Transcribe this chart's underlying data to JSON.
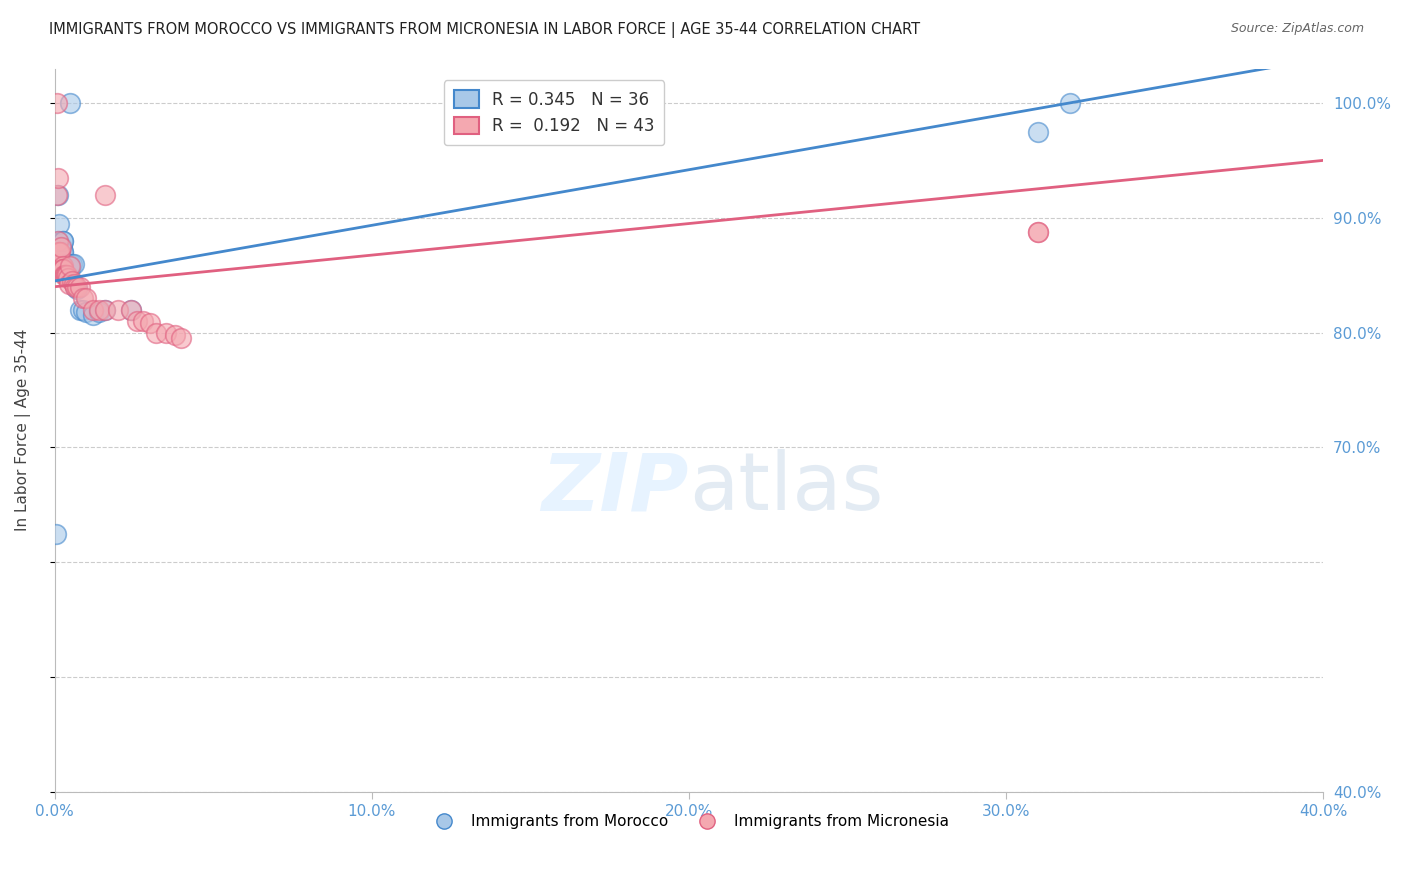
{
  "title": "IMMIGRANTS FROM MOROCCO VS IMMIGRANTS FROM MICRONESIA IN LABOR FORCE | AGE 35-44 CORRELATION CHART",
  "source": "Source: ZipAtlas.com",
  "ylabel": "In Labor Force | Age 35-44",
  "morocco_label": "Immigrants from Morocco",
  "micronesia_label": "Immigrants from Micronesia",
  "morocco_R": 0.345,
  "morocco_N": 36,
  "micronesia_R": 0.192,
  "micronesia_N": 43,
  "morocco_color": "#a8c8e8",
  "micronesia_color": "#f4a8b0",
  "morocco_line_color": "#4488cc",
  "micronesia_line_color": "#e06080",
  "xlim": [
    0.0,
    0.4
  ],
  "ylim": [
    0.4,
    1.03
  ],
  "morocco_x": [
    0.0005,
    0.001,
    0.001,
    0.0012,
    0.0015,
    0.0018,
    0.002,
    0.0022,
    0.0025,
    0.0025,
    0.0028,
    0.0028,
    0.003,
    0.003,
    0.0032,
    0.0035,
    0.0038,
    0.004,
    0.0042,
    0.0045,
    0.0048,
    0.005,
    0.0055,
    0.006,
    0.0065,
    0.007,
    0.008,
    0.009,
    0.01,
    0.012,
    0.014,
    0.016,
    0.024,
    0.005,
    0.31,
    0.32
  ],
  "morocco_y": [
    0.625,
    0.87,
    0.88,
    0.92,
    0.895,
    0.87,
    0.875,
    0.875,
    0.88,
    0.87,
    0.87,
    0.88,
    0.86,
    0.855,
    0.855,
    0.855,
    0.86,
    0.86,
    0.86,
    0.858,
    0.855,
    0.86,
    0.86,
    0.86,
    0.84,
    0.838,
    0.82,
    0.82,
    0.818,
    0.815,
    0.818,
    0.82,
    0.82,
    1.0,
    0.975,
    1.0
  ],
  "micronesia_x": [
    0.0002,
    0.0005,
    0.0008,
    0.001,
    0.0012,
    0.0015,
    0.0015,
    0.0018,
    0.002,
    0.0022,
    0.0025,
    0.0025,
    0.0028,
    0.003,
    0.0032,
    0.0035,
    0.004,
    0.0042,
    0.0045,
    0.005,
    0.0055,
    0.006,
    0.0065,
    0.007,
    0.008,
    0.009,
    0.01,
    0.012,
    0.014,
    0.016,
    0.02,
    0.024,
    0.026,
    0.028,
    0.03,
    0.032,
    0.035,
    0.038,
    0.04,
    0.016,
    0.31,
    0.31,
    0.0008
  ],
  "micronesia_y": [
    0.86,
    0.86,
    0.92,
    0.935,
    0.88,
    0.87,
    0.87,
    0.87,
    0.875,
    0.855,
    0.858,
    0.855,
    0.855,
    0.85,
    0.85,
    0.85,
    0.85,
    0.848,
    0.842,
    0.858,
    0.845,
    0.842,
    0.84,
    0.84,
    0.84,
    0.83,
    0.83,
    0.82,
    0.82,
    0.82,
    0.82,
    0.82,
    0.81,
    0.81,
    0.808,
    0.8,
    0.8,
    0.798,
    0.795,
    0.92,
    0.888,
    0.888,
    1.0
  ],
  "watermark_zip": "ZIP",
  "watermark_atlas": "atlas",
  "background_color": "#ffffff",
  "grid_color": "#cccccc",
  "tick_color": "#5b9bd5",
  "ytick_labels_right": [
    "100.0%",
    "90.0%",
    "80.0%",
    "70.0%",
    "40.0%"
  ],
  "ytick_values_right": [
    1.0,
    0.9,
    0.8,
    0.7,
    0.4
  ],
  "xtick_labels": [
    "0.0%",
    "",
    "",
    "",
    "",
    "10.0%",
    "",
    "",
    "",
    "",
    "20.0%",
    "",
    "",
    "",
    "",
    "30.0%",
    "",
    "",
    "",
    "",
    "40.0%"
  ],
  "xtick_values": [
    0.0,
    0.02,
    0.04,
    0.06,
    0.08,
    0.1,
    0.12,
    0.14,
    0.16,
    0.18,
    0.2,
    0.22,
    0.24,
    0.26,
    0.28,
    0.3,
    0.32,
    0.34,
    0.36,
    0.38,
    0.4
  ]
}
